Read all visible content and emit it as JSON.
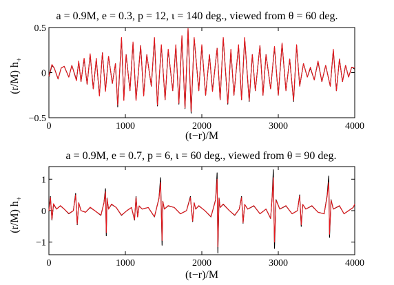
{
  "chart_data": [
    {
      "type": "line",
      "title": "a = 0.9M,   e = 0.3,   p = 12,   ι = 140 deg.,    viewed from  θ = 60 deg.",
      "xlabel": "(t−r)/M",
      "ylabel": "(r/M) h",
      "ylabel_sub": "+",
      "xlim": [
        0,
        4000
      ],
      "ylim": [
        -0.5,
        0.5
      ],
      "xticks": [
        0,
        1000,
        2000,
        3000,
        4000
      ],
      "yticks": [
        -0.5,
        0,
        0.5
      ],
      "xtick_labels": [
        "0",
        "1000",
        "2000",
        "3000",
        "4000"
      ],
      "ytick_labels": [
        "−0.5",
        "0",
        "0.5"
      ],
      "grid": false,
      "series": [
        {
          "color": "#000000",
          "x": [
            0,
            40,
            70,
            120,
            160,
            200,
            260,
            300,
            360,
            390,
            420,
            460,
            500,
            540,
            580,
            620,
            660,
            700,
            740,
            780,
            830,
            870,
            900,
            950,
            980,
            1010,
            1060,
            1100,
            1140,
            1200,
            1240,
            1280,
            1340,
            1380,
            1420,
            1470,
            1520,
            1560,
            1620,
            1660,
            1700,
            1740,
            1780,
            1820,
            1860,
            1900,
            1960,
            2000,
            2050,
            2100,
            2140,
            2200,
            2240,
            2280,
            2340,
            2380,
            2420,
            2480,
            2520,
            2560,
            2620,
            2660,
            2700,
            2760,
            2800,
            2840,
            2900,
            2950,
            3000,
            3050,
            3100,
            3150,
            3200,
            3240,
            3280,
            3330,
            3380,
            3420,
            3470,
            3520,
            3570,
            3620,
            3680,
            3720,
            3760,
            3800,
            3840,
            3880,
            3920,
            3960,
            4000
          ],
          "y": [
            -0.05,
            0.08,
            0.05,
            -0.07,
            0.05,
            0.07,
            -0.05,
            0.08,
            -0.08,
            0.12,
            -0.1,
            0.15,
            -0.13,
            0.2,
            -0.18,
            0.15,
            -0.25,
            0.22,
            -0.2,
            0.18,
            -0.12,
            0.1,
            -0.38,
            0.38,
            -0.3,
            0.2,
            -0.2,
            0.33,
            -0.3,
            0.3,
            -0.25,
            0.2,
            -0.15,
            0.38,
            -0.37,
            0.3,
            -0.3,
            0.25,
            -0.2,
            0.3,
            -0.35,
            0.4,
            -0.4,
            0.48,
            -0.45,
            0.38,
            -0.2,
            0.3,
            -0.25,
            0.2,
            -0.2,
            0.27,
            -0.3,
            0.38,
            -0.35,
            0.25,
            -0.25,
            0.3,
            -0.3,
            0.38,
            -0.32,
            0.2,
            -0.2,
            0.3,
            -0.25,
            0.2,
            -0.18,
            0.28,
            -0.25,
            0.32,
            -0.2,
            0.15,
            -0.32,
            0.3,
            -0.15,
            0.1,
            -0.05,
            0.05,
            -0.08,
            0.12,
            -0.1,
            0.08,
            -0.15,
            0.25,
            -0.2,
            0.15,
            -0.1,
            0.08,
            -0.05,
            0.06,
            0.04
          ]
        },
        {
          "color": "#e8191e",
          "x": [
            0,
            40,
            70,
            120,
            160,
            200,
            260,
            300,
            360,
            390,
            420,
            460,
            500,
            540,
            580,
            620,
            660,
            700,
            740,
            780,
            830,
            870,
            900,
            950,
            980,
            1010,
            1060,
            1100,
            1140,
            1200,
            1240,
            1280,
            1340,
            1380,
            1420,
            1470,
            1520,
            1560,
            1620,
            1660,
            1700,
            1740,
            1780,
            1820,
            1860,
            1900,
            1960,
            2000,
            2050,
            2100,
            2140,
            2200,
            2240,
            2280,
            2340,
            2380,
            2420,
            2480,
            2520,
            2560,
            2620,
            2660,
            2700,
            2760,
            2800,
            2840,
            2900,
            2950,
            3000,
            3050,
            3100,
            3150,
            3200,
            3240,
            3280,
            3330,
            3380,
            3420,
            3470,
            3520,
            3570,
            3620,
            3680,
            3720,
            3760,
            3800,
            3840,
            3880,
            3920,
            3960,
            4000
          ],
          "y": [
            -0.04,
            0.09,
            0.05,
            -0.07,
            0.05,
            0.07,
            -0.05,
            0.08,
            -0.09,
            0.13,
            -0.1,
            0.16,
            -0.13,
            0.21,
            -0.18,
            0.16,
            -0.26,
            0.22,
            -0.21,
            0.18,
            -0.12,
            0.1,
            -0.36,
            0.39,
            -0.31,
            0.2,
            -0.2,
            0.34,
            -0.31,
            0.3,
            -0.26,
            0.2,
            -0.15,
            0.39,
            -0.36,
            0.31,
            -0.3,
            0.26,
            -0.2,
            0.31,
            -0.34,
            0.41,
            -0.39,
            0.49,
            -0.43,
            0.39,
            -0.2,
            0.31,
            -0.25,
            0.2,
            -0.21,
            0.27,
            -0.3,
            0.39,
            -0.34,
            0.26,
            -0.25,
            0.31,
            -0.3,
            0.39,
            -0.31,
            0.2,
            -0.2,
            0.3,
            -0.25,
            0.2,
            -0.18,
            0.29,
            -0.25,
            0.33,
            -0.2,
            0.15,
            -0.31,
            0.31,
            -0.15,
            0.1,
            -0.05,
            0.06,
            -0.08,
            0.13,
            -0.1,
            0.08,
            -0.15,
            0.26,
            -0.2,
            0.15,
            -0.1,
            0.08,
            -0.05,
            0.06,
            0.05
          ]
        }
      ]
    },
    {
      "type": "line",
      "title": "a = 0.9M,   e = 0.7,   p = 6,   ι = 60 deg.,    viewed from  θ = 90 deg.",
      "xlabel": "(t−r)/M",
      "ylabel": "(r/M) h",
      "ylabel_sub": "+",
      "xlim": [
        0,
        4000
      ],
      "ylim": [
        -1.4,
        1.4
      ],
      "xticks": [
        0,
        1000,
        2000,
        3000,
        4000
      ],
      "yticks": [
        -1,
        0,
        1
      ],
      "xtick_labels": [
        "0",
        "1000",
        "2000",
        "3000",
        "4000"
      ],
      "ytick_labels": [
        "−1",
        "0",
        "1"
      ],
      "grid": false,
      "series": [
        {
          "color": "#000000",
          "x": [
            0,
            20,
            40,
            60,
            100,
            150,
            200,
            260,
            320,
            350,
            370,
            390,
            420,
            480,
            540,
            600,
            680,
            720,
            740,
            750,
            760,
            780,
            820,
            880,
            950,
            1020,
            1080,
            1120,
            1140,
            1160,
            1180,
            1220,
            1300,
            1380,
            1440,
            1460,
            1480,
            1490,
            1510,
            1560,
            1640,
            1720,
            1800,
            1850,
            1880,
            1900,
            1920,
            1960,
            2040,
            2120,
            2180,
            2200,
            2210,
            2225,
            2240,
            2280,
            2360,
            2430,
            2490,
            2520,
            2540,
            2560,
            2600,
            2680,
            2760,
            2840,
            2900,
            2920,
            2935,
            2950,
            2970,
            3020,
            3100,
            3180,
            3250,
            3280,
            3300,
            3320,
            3360,
            3440,
            3520,
            3600,
            3640,
            3660,
            3670,
            3690,
            3720,
            3800,
            3860,
            3920,
            3980,
            4000
          ],
          "y": [
            0.0,
            0.45,
            -0.3,
            0.2,
            0.05,
            0.15,
            0.05,
            -0.1,
            0.0,
            0.55,
            -0.45,
            0.25,
            0.0,
            -0.05,
            0.1,
            0.0,
            -0.15,
            0.25,
            0.7,
            -0.8,
            0.4,
            0.05,
            0.2,
            0.1,
            -0.15,
            0.0,
            0.1,
            -0.3,
            0.45,
            -0.2,
            0.15,
            0.05,
            0.1,
            -0.2,
            0.4,
            1.05,
            -1.1,
            0.3,
            0.05,
            0.15,
            0.1,
            -0.1,
            0.0,
            0.45,
            -0.35,
            0.25,
            0.05,
            0.15,
            0.0,
            -0.2,
            0.35,
            1.2,
            -1.35,
            0.4,
            0.1,
            0.2,
            0.0,
            -0.15,
            0.05,
            0.45,
            -0.4,
            0.2,
            0.05,
            0.15,
            -0.1,
            0.05,
            -0.25,
            0.45,
            1.3,
            -1.2,
            0.35,
            0.05,
            0.15,
            -0.1,
            0.0,
            0.5,
            -0.5,
            0.2,
            0.05,
            0.15,
            -0.05,
            -0.1,
            0.5,
            1.1,
            -0.85,
            0.35,
            0.05,
            0.15,
            -0.1,
            0.0,
            0.1,
            0.2
          ]
        },
        {
          "color": "#e8191e",
          "x": [
            0,
            20,
            40,
            60,
            100,
            150,
            200,
            260,
            320,
            350,
            370,
            390,
            420,
            480,
            540,
            600,
            680,
            720,
            740,
            750,
            760,
            780,
            820,
            880,
            950,
            1020,
            1080,
            1120,
            1140,
            1160,
            1180,
            1220,
            1300,
            1380,
            1440,
            1460,
            1480,
            1490,
            1510,
            1560,
            1640,
            1720,
            1800,
            1850,
            1880,
            1900,
            1920,
            1960,
            2040,
            2120,
            2180,
            2200,
            2210,
            2225,
            2240,
            2280,
            2360,
            2430,
            2490,
            2520,
            2540,
            2560,
            2600,
            2680,
            2760,
            2840,
            2900,
            2920,
            2935,
            2950,
            2970,
            3020,
            3100,
            3180,
            3250,
            3280,
            3300,
            3320,
            3360,
            3440,
            3520,
            3600,
            3640,
            3660,
            3670,
            3690,
            3720,
            3800,
            3860,
            3920,
            3980,
            4000
          ],
          "y": [
            0.0,
            0.42,
            -0.28,
            0.22,
            0.05,
            0.16,
            0.05,
            -0.09,
            0.0,
            0.5,
            -0.42,
            0.25,
            0.0,
            -0.05,
            0.11,
            0.0,
            -0.14,
            0.25,
            0.6,
            -0.7,
            0.38,
            0.05,
            0.21,
            0.1,
            -0.14,
            0.0,
            0.1,
            -0.28,
            0.42,
            -0.2,
            0.15,
            0.05,
            0.1,
            -0.19,
            0.38,
            0.9,
            -0.95,
            0.3,
            0.05,
            0.16,
            0.1,
            -0.1,
            0.0,
            0.42,
            -0.33,
            0.25,
            0.05,
            0.16,
            0.0,
            -0.19,
            0.33,
            1.0,
            -1.15,
            0.38,
            0.1,
            0.21,
            0.0,
            -0.14,
            0.05,
            0.42,
            -0.38,
            0.2,
            0.05,
            0.16,
            -0.1,
            0.05,
            -0.24,
            0.42,
            1.05,
            -1.0,
            0.33,
            0.05,
            0.16,
            -0.1,
            0.0,
            0.46,
            -0.45,
            0.2,
            0.05,
            0.16,
            -0.05,
            -0.1,
            0.46,
            0.9,
            -0.75,
            0.33,
            0.05,
            0.16,
            -0.1,
            0.0,
            0.1,
            0.21
          ]
        }
      ]
    }
  ]
}
